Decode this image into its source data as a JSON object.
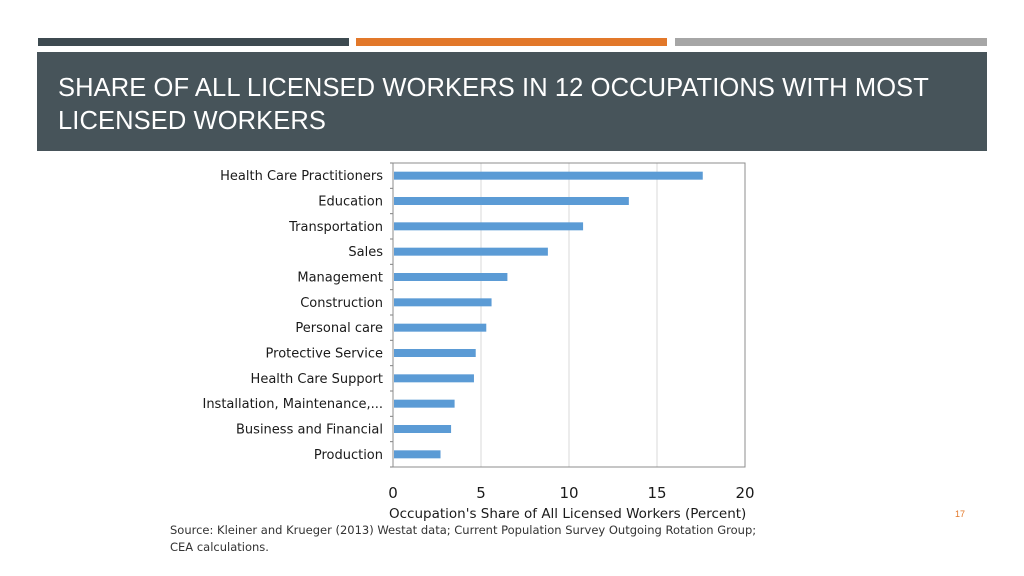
{
  "slide": {
    "title": "SHARE OF ALL LICENSED WORKERS IN 12 OCCUPATIONS WITH MOST LICENSED WORKERS",
    "source": "Source: Kleiner and Krueger (2013) Westat data;  Current Population Survey Outgoing Rotation Group; CEA calculations.",
    "slide_number": "17"
  },
  "colors": {
    "accent_bar_1": "#3d4a50",
    "accent_bar_2": "#e2782a",
    "accent_bar_3": "#a6a6a6",
    "title_band": "#47545a",
    "bar_fill": "#5b9bd5",
    "slide_number": "#e2782a"
  },
  "chart_data": {
    "type": "bar",
    "orientation": "horizontal",
    "title": "",
    "xlabel": "Occupation's Share of All Licensed Workers (Percent)",
    "ylabel": "",
    "xlim": [
      0,
      20
    ],
    "xticks": [
      0,
      5,
      10,
      15,
      20
    ],
    "grid": true,
    "legend": "none",
    "categories": [
      "Health Care Practitioners",
      "Education",
      "Transportation",
      "Sales",
      "Management",
      "Construction",
      "Personal care",
      "Protective Service",
      "Health Care Support",
      "Installation, Maintenance,...",
      "Business and Financial",
      "Production"
    ],
    "values": [
      17.6,
      13.4,
      10.8,
      8.8,
      6.5,
      5.6,
      5.3,
      4.7,
      4.6,
      3.5,
      3.3,
      2.7
    ]
  }
}
